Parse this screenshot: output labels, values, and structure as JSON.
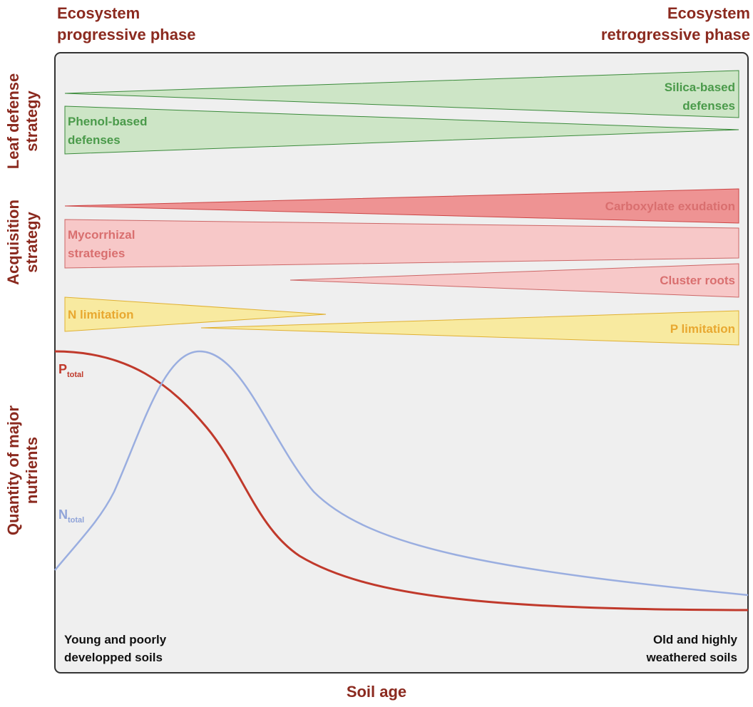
{
  "header": {
    "left": [
      "Ecosystem",
      "progressive phase"
    ],
    "right": [
      "Ecosystem",
      "retrogressive phase"
    ]
  },
  "row_labels": [
    [
      "Leaf defense",
      "strategy"
    ],
    [
      "Acquisition",
      "strategy"
    ],
    [
      "Quantity of major",
      "nutrients"
    ]
  ],
  "wedges": [
    {
      "label": [
        "Silica-based",
        "defenses"
      ]
    },
    {
      "label": [
        "Phenol-based",
        "defenses"
      ]
    },
    {
      "label": [
        "Carboxylate exudation"
      ]
    },
    {
      "label": [
        "Mycorrhizal",
        "strategies"
      ]
    },
    {
      "label": [
        "Cluster roots"
      ]
    },
    {
      "label": [
        "N limitation"
      ]
    },
    {
      "label": [
        "P limitation"
      ]
    }
  ],
  "curves": [
    {
      "symbol": "P",
      "subscript": "total"
    },
    {
      "symbol": "N",
      "subscript": "total"
    }
  ],
  "footer": {
    "left": [
      "Young and poorly",
      "developped soils"
    ],
    "right": [
      "Old and highly",
      "weathered soils"
    ]
  },
  "x_axis_label": "Soil age"
}
